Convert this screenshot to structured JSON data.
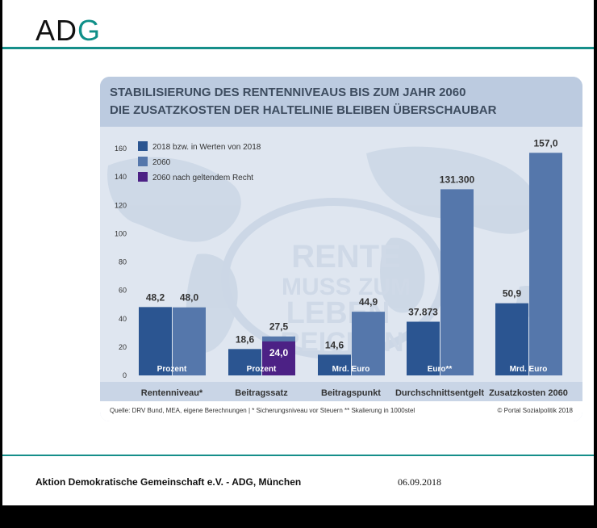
{
  "header": {
    "logo_text": "ADG",
    "brand_color": "#168f8a"
  },
  "footer": {
    "organization": "Aktion Demokratische Gemeinschaft e.V. - ADG, München",
    "date": "06.09.2018"
  },
  "chart_data": {
    "type": "bar",
    "title": "STABILISIERUNG DES RENTENNIVEAUS BIS ZUM JAHR 2060",
    "subtitle": "DIE ZUSATZKOSTEN DER HALTELINIE BLEIBEN ÜBERSCHAUBAR",
    "ylim": [
      0,
      160
    ],
    "yticks": [
      0,
      20,
      40,
      60,
      80,
      100,
      120,
      140,
      160
    ],
    "grid": false,
    "legend_position": "top-left",
    "series": [
      {
        "name": "2018 bzw. in Werten von 2018",
        "color": "#2b5591"
      },
      {
        "name": "2060",
        "color": "#5577ab"
      },
      {
        "name": "2060 nach geltendem Recht",
        "color": "#4c2185"
      }
    ],
    "categories": [
      "Rentenniveau*",
      "Beitragssatz",
      "Beitragspunkt",
      "Durchschnittsentgelt",
      "Zusatzkosten 2060"
    ],
    "groups": [
      {
        "category": "Rentenniveau*",
        "unit": "Prozent",
        "bars": [
          {
            "series": 0,
            "value": 48.2,
            "label": "48,2"
          },
          {
            "series": 1,
            "value": 48.0,
            "label": "48,0"
          }
        ]
      },
      {
        "category": "Beitragssatz",
        "unit": "Prozent",
        "bars": [
          {
            "series": 0,
            "value": 18.6,
            "label": "18,6"
          },
          {
            "series": 1,
            "value": 27.5,
            "label": "27,5"
          },
          {
            "series": 2,
            "value": 24.0,
            "label": "24,0"
          }
        ]
      },
      {
        "category": "Beitragspunkt",
        "unit": "Mrd. Euro",
        "bars": [
          {
            "series": 0,
            "value": 14.6,
            "label": "14,6"
          },
          {
            "series": 1,
            "value": 44.9,
            "label": "44,9"
          }
        ]
      },
      {
        "category": "Durchschnittsentgelt",
        "unit": "Euro**",
        "bars": [
          {
            "series": 0,
            "value": 37.873,
            "label": "37.873"
          },
          {
            "series": 1,
            "value": 131.3,
            "label": "131.300"
          }
        ]
      },
      {
        "category": "Zusatzkosten 2060",
        "unit": "Mrd. Euro",
        "bars": [
          {
            "series": 0,
            "value": 50.9,
            "label": "50,9"
          },
          {
            "series": 1,
            "value": 157.0,
            "label": "157,0"
          }
        ]
      }
    ],
    "background_text": [
      "RENTE",
      "MUSS ZUM",
      "LEBEN",
      "REICHEN"
    ],
    "source_note": "Quelle: DRV Bund, MEA, eigene Berechnungen | * Sicherungsniveau vor Steuern ** Skalierung in 1000stel",
    "copyright": "© Portal Sozialpolitik 2018"
  }
}
